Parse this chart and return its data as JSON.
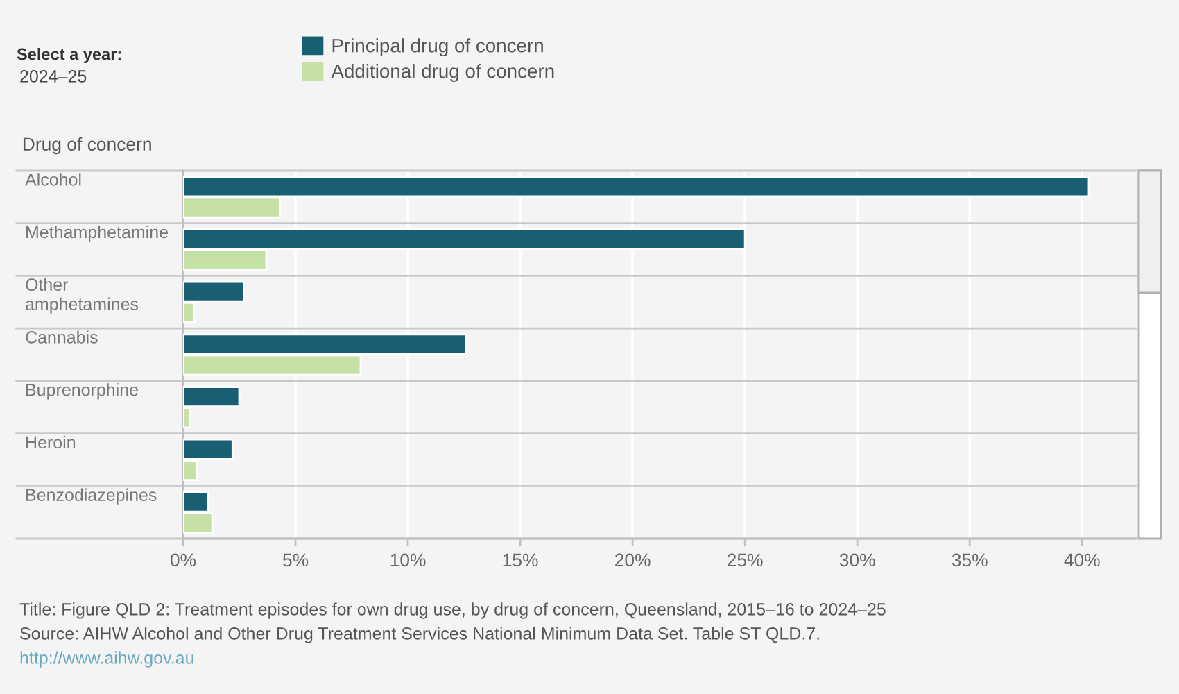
{
  "chart_data": {
    "type": "bar",
    "orientation": "horizontal",
    "ylabel": "Drug of concern",
    "categories": [
      "Alcohol",
      "Methamphetamine",
      "Other amphetamines",
      "Cannabis",
      "Buprenorphine",
      "Heroin",
      "Benzodiazepines"
    ],
    "series": [
      {
        "name": "Principal drug of concern",
        "color": "#185f74",
        "values": [
          40.3,
          25.0,
          2.7,
          12.6,
          2.5,
          2.2,
          1.1
        ]
      },
      {
        "name": "Additional drug of concern",
        "color": "#c5e1a5",
        "values": [
          4.3,
          3.7,
          0.5,
          7.9,
          0.3,
          0.6,
          1.3
        ]
      }
    ],
    "xlim": [
      0,
      42.4
    ],
    "xticks": [
      {
        "value": 0,
        "label": "0%"
      },
      {
        "value": 5,
        "label": "5%"
      },
      {
        "value": 10,
        "label": "10%"
      },
      {
        "value": 15,
        "label": "15%"
      },
      {
        "value": 20,
        "label": "20%"
      },
      {
        "value": 25,
        "label": "25%"
      },
      {
        "value": 30,
        "label": "30%"
      },
      {
        "value": 35,
        "label": "35%"
      },
      {
        "value": 40,
        "label": "40%"
      }
    ],
    "grid": "x",
    "legend": "top left",
    "annotations": [
      "Select a year:",
      "2024–25",
      "Title: Figure QLD 2: Treatment episodes for own drug use, by drug of concern, Queensland, 2015–16 to 2024–25",
      "Source: AIHW Alcohol and Other Drug Treatment Services National Minimum Data Set. Table ST QLD.7.",
      "http://www.aihw.gov.au"
    ]
  }
}
